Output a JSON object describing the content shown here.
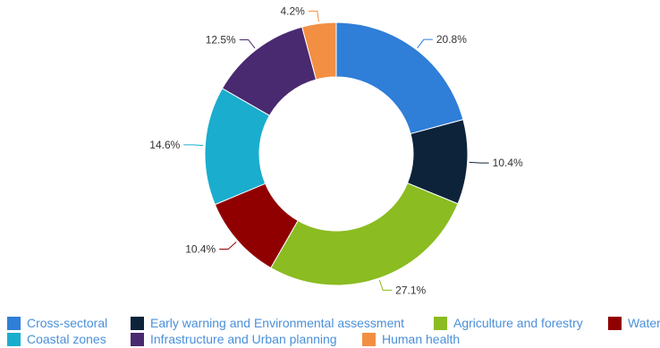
{
  "chart_data": {
    "type": "pie",
    "title": "",
    "categories": [
      "Cross-sectoral",
      "Early warning and Environmental assessment",
      "Agriculture and forestry",
      "Water",
      "Coastal zones",
      "Infrastructure and Urban planning",
      "Human health"
    ],
    "values": [
      20.8,
      10.4,
      27.1,
      10.4,
      14.6,
      12.5,
      4.2
    ],
    "value_labels": [
      "20.8%",
      "10.4%",
      "27.1%",
      "10.4%",
      "14.6%",
      "12.5%",
      "4.2%"
    ],
    "colors": [
      "#2f7ed8",
      "#0d233a",
      "#8bbc21",
      "#910000",
      "#1aadce",
      "#492970",
      "#f28f43"
    ],
    "donut": true,
    "legend_position": "bottom"
  },
  "legend": {
    "items": [
      {
        "label": "Cross-sectoral",
        "color": "#2f7ed8"
      },
      {
        "label": "Early warning and Environmental assessment",
        "color": "#0d233a"
      },
      {
        "label": "Agriculture and forestry",
        "color": "#8bbc21"
      },
      {
        "label": "Water",
        "color": "#910000"
      },
      {
        "label": "Coastal zones",
        "color": "#1aadce"
      },
      {
        "label": "Infrastructure and Urban planning",
        "color": "#492970"
      },
      {
        "label": "Human health",
        "color": "#f28f43"
      }
    ]
  }
}
